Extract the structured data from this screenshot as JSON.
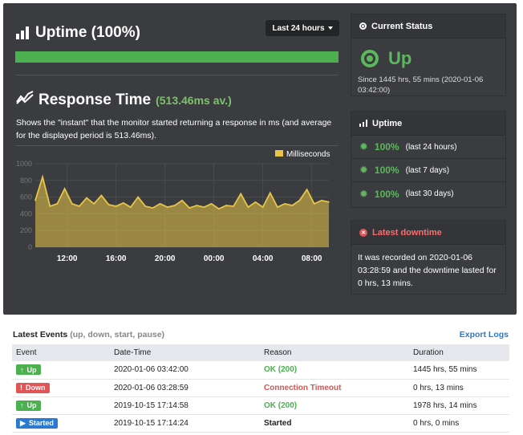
{
  "uptime": {
    "title": "Uptime (100%)",
    "range": "Last 24 hours",
    "bar_fill_fraction": 1.0,
    "bar_color": "#4caf50"
  },
  "response": {
    "title": "Response Time",
    "avg": "(513.46ms av.)",
    "description": "Shows the \"instant\" that the monitor started returning a response in ms (and average for the displayed period is 513.46ms)."
  },
  "chart_data": {
    "type": "area",
    "legend": "Milliseconds",
    "legend_position": "top-right",
    "series_color": "#e8c547",
    "ylim": [
      0,
      1000
    ],
    "yticks": [
      "0",
      "200",
      "400",
      "600",
      "800",
      "1000"
    ],
    "xticks": [
      "12:00",
      "16:00",
      "20:00",
      "00:00",
      "04:00",
      "08:00"
    ],
    "xtick_hours": [
      12,
      16,
      20,
      24,
      28,
      32
    ],
    "x_hours": [
      9.4,
      10.0,
      10.6,
      11.2,
      11.8,
      12.4,
      13.0,
      13.6,
      14.2,
      14.8,
      15.4,
      16.0,
      16.6,
      17.2,
      17.8,
      18.4,
      19.0,
      19.6,
      20.2,
      20.8,
      21.4,
      22.0,
      22.6,
      23.2,
      23.8,
      24.4,
      25.0,
      25.6,
      26.2,
      26.8,
      27.4,
      28.0,
      28.6,
      29.2,
      29.8,
      30.4,
      31.0,
      31.6,
      32.2,
      32.8,
      33.4
    ],
    "values": [
      560,
      840,
      490,
      520,
      700,
      520,
      490,
      590,
      520,
      620,
      510,
      490,
      530,
      480,
      600,
      490,
      470,
      520,
      480,
      500,
      560,
      470,
      500,
      480,
      520,
      460,
      500,
      490,
      640,
      480,
      540,
      480,
      650,
      480,
      520,
      500,
      560,
      690,
      520,
      560,
      540
    ],
    "grid": true
  },
  "status": {
    "title": "Current Status",
    "state": "Up",
    "since": "Since 1445 hrs, 55 mins (2020-01-06 03:42:00)",
    "color": "#5cb85c"
  },
  "uptime_card": {
    "title": "Uptime",
    "rows": [
      {
        "pct": "100%",
        "period": "(last 24 hours)"
      },
      {
        "pct": "100%",
        "period": "(last 7 days)"
      },
      {
        "pct": "100%",
        "period": "(last 30 days)"
      }
    ]
  },
  "downtime": {
    "title": "Latest downtime",
    "text": "It was recorded on 2020-01-06 03:28:59 and the downtime lasted for 0 hrs, 13 mins.",
    "color": "#e05555"
  },
  "events": {
    "title": "Latest Events",
    "subtitle": "(up, down, start, pause)",
    "export": "Export Logs",
    "columns": [
      "Event",
      "Date-Time",
      "Reason",
      "Duration"
    ],
    "rows": [
      {
        "event": "Up",
        "icon": "arrow-up-icon",
        "datetime": "2020-01-06 03:42:00",
        "reason": "OK (200)",
        "duration": "1445 hrs, 55 mins"
      },
      {
        "event": "Down",
        "icon": "exclamation-icon",
        "datetime": "2020-01-06 03:28:59",
        "reason": "Connection Timeout",
        "duration": "0 hrs, 13 mins"
      },
      {
        "event": "Up",
        "icon": "arrow-up-icon",
        "datetime": "2019-10-15 17:14:58",
        "reason": "OK (200)",
        "duration": "1978 hrs, 14 mins"
      },
      {
        "event": "Started",
        "icon": "play-icon",
        "datetime": "2019-10-15 17:14:24",
        "reason": "Started",
        "duration": "0 hrs, 0 mins"
      }
    ]
  }
}
